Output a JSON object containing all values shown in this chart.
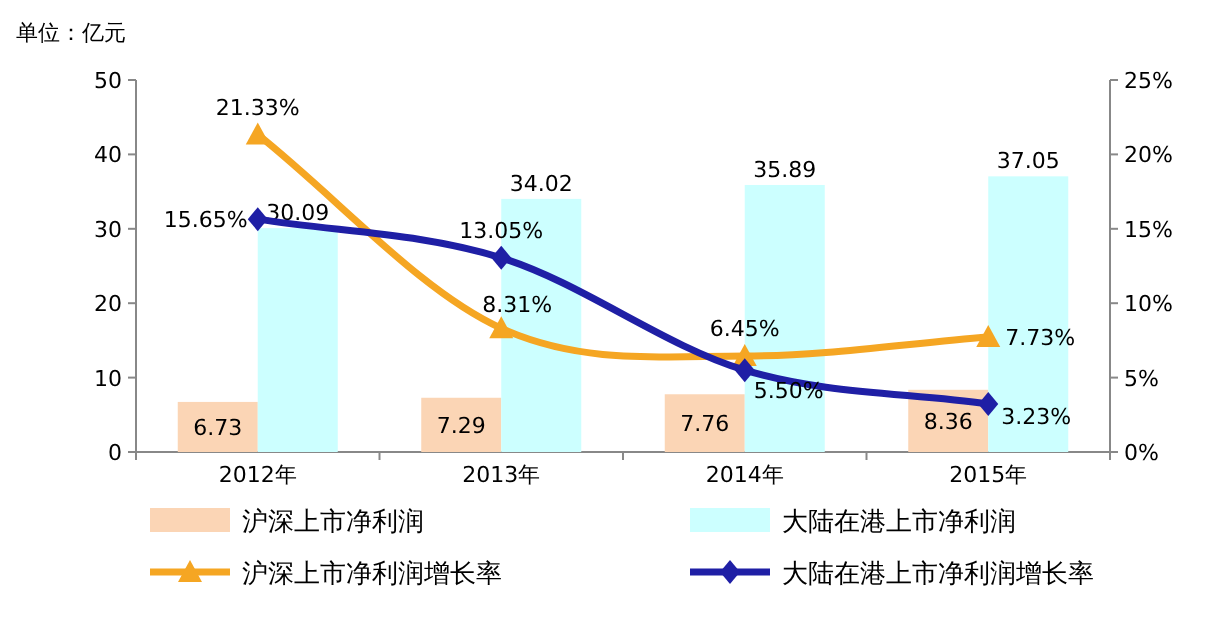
{
  "chart_data": {
    "type": "bar",
    "ylabel": "单位：亿元",
    "categories": [
      "2012年",
      "2013年",
      "2014年",
      "2015年"
    ],
    "series": [
      {
        "name": "沪深上市净利润",
        "color": "#fbd5b5",
        "values": [
          6.73,
          7.29,
          7.76,
          8.36
        ],
        "value_labels": [
          "6.73",
          "7.29",
          "7.76",
          "8.36"
        ]
      },
      {
        "name": "大陆在港上市净利润",
        "color": "#ccffff",
        "values": [
          30.09,
          34.02,
          35.89,
          37.05
        ],
        "value_labels": [
          "30.09",
          "34.02",
          "35.89",
          "37.05"
        ]
      },
      {
        "name": "沪深上市净利润增长率",
        "type": "line",
        "axis": "y2",
        "color": "#f5a623",
        "marker": "triangle",
        "values": [
          21.33,
          8.31,
          6.45,
          7.73
        ],
        "value_labels": [
          "21.33%",
          "8.31%",
          "6.45%",
          "7.73%"
        ]
      },
      {
        "name": "大陆在港上市净利润增长率",
        "type": "line",
        "axis": "y2",
        "color": "#1f1fa5",
        "marker": "diamond",
        "values": [
          15.65,
          13.05,
          5.5,
          3.23
        ],
        "value_labels": [
          "15.65%",
          "13.05%",
          "5.50%",
          "3.23%"
        ]
      }
    ],
    "ylim": [
      0,
      50
    ],
    "yticks": [
      0,
      10,
      20,
      30,
      40,
      50
    ],
    "y2lim": [
      0,
      25
    ],
    "y2ticks": [
      {
        "value": 0,
        "label": "0%"
      },
      {
        "value": 5,
        "label": "5%"
      },
      {
        "value": 10,
        "label": "10%"
      },
      {
        "value": 15,
        "label": "15%"
      },
      {
        "value": 20,
        "label": "20%"
      },
      {
        "value": 25,
        "label": "25%"
      }
    ],
    "legend": "bottom",
    "grid": false
  }
}
